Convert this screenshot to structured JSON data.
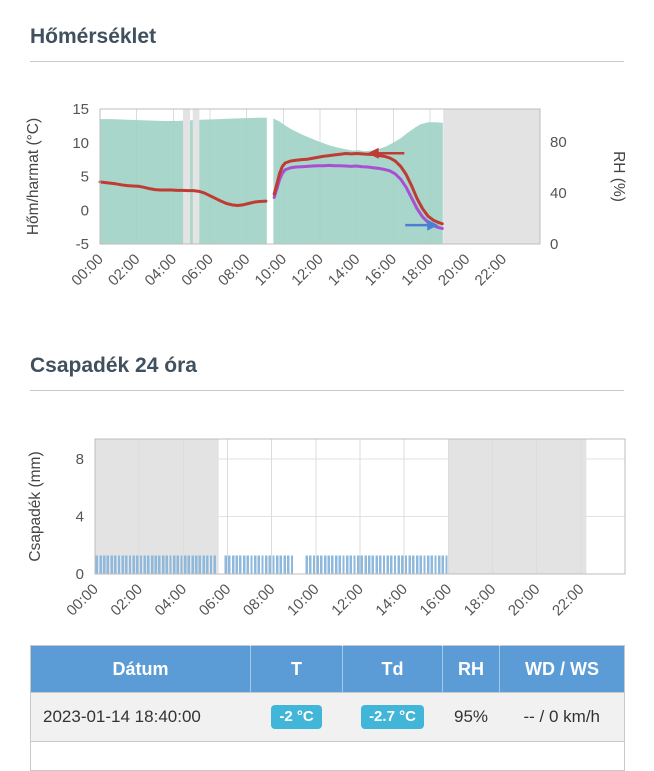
{
  "sections": {
    "temperature": {
      "title": "Hőmérséklet"
    },
    "precipitation": {
      "title": "Csapadék 24 óra"
    }
  },
  "colors": {
    "temperature_line": "#bf3b33",
    "dewpoint_line": "#a94fd1",
    "rh_area": "#a0d2c4",
    "no_data_band": "#e3e3e3",
    "grid": "#dcdcdc",
    "plot_border": "#bdbdbd",
    "table_header_bg": "#5b9cd6",
    "badge_bg": "#41b6d9",
    "bar_fill": "#8db9dd"
  },
  "chart_data": [
    {
      "type": "line",
      "title": "Hőmérséklet",
      "ylabel_left": "Hőm/harmat (°C)",
      "ylabel_right": "RH (%)",
      "ylim_left": [
        -5,
        15
      ],
      "yticks_left": [
        15,
        10,
        5,
        0,
        -5
      ],
      "ylim_right": [
        0,
        105.9
      ],
      "yticks_right": [
        80,
        40,
        0
      ],
      "xlim_hours": [
        0,
        24
      ],
      "xticks": [
        "00:00",
        "02:00",
        "04:00",
        "06:00",
        "08:00",
        "10:00",
        "12:00",
        "14:00",
        "16:00",
        "18:00",
        "20:00",
        "22:00"
      ],
      "grid": true,
      "legend": "none",
      "no_data_bands_hours": [
        [
          4.53,
          4.92
        ],
        [
          5.06,
          5.42
        ],
        [
          18.72,
          24
        ]
      ],
      "gap_band_hours": [
        9.12,
        9.45
      ],
      "series": [
        {
          "key": "rh-area",
          "name": "RH",
          "type": "area",
          "color": "#a0d2c4",
          "axis": "right",
          "segments": [
            [
              [
                0,
                98
              ],
              [
                0.7,
                98
              ],
              [
                1.5,
                97.5
              ],
              [
                2.5,
                97
              ],
              [
                3.5,
                96.5
              ],
              [
                4.2,
                96.5
              ],
              [
                4.8,
                97
              ],
              [
                5.5,
                97.5
              ],
              [
                6.5,
                98
              ],
              [
                7.5,
                98.5
              ],
              [
                8.5,
                99
              ],
              [
                9.1,
                99
              ]
            ],
            [
              [
                9.45,
                98.5
              ],
              [
                9.8,
                96
              ],
              [
                10.1,
                93
              ],
              [
                10.5,
                89.5
              ],
              [
                11,
                86
              ],
              [
                11.5,
                83
              ],
              [
                12,
                80
              ],
              [
                12.5,
                77.5
              ],
              [
                13,
                75.5
              ],
              [
                13.5,
                74
              ],
              [
                13.8,
                73.2
              ],
              [
                14.1,
                73.6
              ],
              [
                14.4,
                72.8
              ],
              [
                14.8,
                73.2
              ],
              [
                15.2,
                74.5
              ],
              [
                15.6,
                76.5
              ],
              [
                16,
                79.5
              ],
              [
                16.4,
                83
              ],
              [
                16.8,
                87.5
              ],
              [
                17.2,
                91.5
              ],
              [
                17.5,
                94
              ],
              [
                17.9,
                95.5
              ],
              [
                18.3,
                95.5
              ],
              [
                18.7,
                95
              ]
            ]
          ]
        },
        {
          "key": "dewpoint-line",
          "name": "Harmatpont",
          "type": "line",
          "color": "#a94fd1",
          "axis": "left",
          "segments": [
            [
              [
                9.5,
                1.9
              ],
              [
                9.65,
                3.2
              ],
              [
                9.8,
                4.6
              ],
              [
                9.95,
                5.5
              ],
              [
                10.1,
                6.0
              ],
              [
                10.4,
                6.3
              ],
              [
                10.7,
                6.4
              ],
              [
                11,
                6.45
              ],
              [
                11.3,
                6.5
              ],
              [
                11.6,
                6.55
              ],
              [
                11.9,
                6.6
              ],
              [
                12.2,
                6.6
              ],
              [
                12.5,
                6.65
              ],
              [
                12.8,
                6.6
              ],
              [
                13.1,
                6.6
              ],
              [
                13.4,
                6.55
              ],
              [
                13.7,
                6.5
              ],
              [
                14,
                6.55
              ],
              [
                14.3,
                6.45
              ],
              [
                14.6,
                6.4
              ],
              [
                14.9,
                6.3
              ],
              [
                15.2,
                6.2
              ],
              [
                15.5,
                6.05
              ],
              [
                15.8,
                5.85
              ],
              [
                16.1,
                5.4
              ],
              [
                16.4,
                4.6
              ],
              [
                16.7,
                3.4
              ],
              [
                17,
                1.8
              ],
              [
                17.3,
                0.2
              ],
              [
                17.6,
                -1.0
              ],
              [
                17.9,
                -1.8
              ],
              [
                18.2,
                -2.3
              ],
              [
                18.45,
                -2.55
              ],
              [
                18.67,
                -2.7
              ]
            ]
          ]
        },
        {
          "key": "temperature-line",
          "name": "Hőmérséklet",
          "type": "line",
          "color": "#bf3b33",
          "axis": "left",
          "segments": [
            [
              [
                0,
                4.2
              ],
              [
                0.3,
                4.1
              ],
              [
                0.6,
                4.0
              ],
              [
                0.9,
                3.9
              ],
              [
                1.2,
                3.75
              ],
              [
                1.5,
                3.65
              ],
              [
                1.8,
                3.6
              ],
              [
                2.1,
                3.55
              ],
              [
                2.4,
                3.4
              ],
              [
                2.7,
                3.2
              ],
              [
                3,
                3.05
              ],
              [
                3.3,
                3.0
              ],
              [
                3.6,
                3.0
              ],
              [
                3.9,
                3.0
              ],
              [
                4.2,
                2.95
              ],
              [
                4.5,
                2.95
              ],
              [
                4.8,
                2.9
              ],
              [
                5.1,
                2.9
              ],
              [
                5.4,
                2.8
              ],
              [
                5.7,
                2.55
              ],
              [
                6,
                2.15
              ],
              [
                6.3,
                1.75
              ],
              [
                6.6,
                1.35
              ],
              [
                6.9,
                1.0
              ],
              [
                7.2,
                0.8
              ],
              [
                7.5,
                0.7
              ],
              [
                7.8,
                0.8
              ],
              [
                8.1,
                1.0
              ],
              [
                8.4,
                1.2
              ],
              [
                8.7,
                1.3
              ],
              [
                9.05,
                1.35
              ]
            ],
            [
              [
                9.5,
                2.4
              ],
              [
                9.65,
                3.9
              ],
              [
                9.8,
                5.5
              ],
              [
                9.95,
                6.5
              ],
              [
                10.1,
                7.0
              ],
              [
                10.4,
                7.3
              ],
              [
                10.7,
                7.4
              ],
              [
                11,
                7.5
              ],
              [
                11.3,
                7.55
              ],
              [
                11.6,
                7.7
              ],
              [
                11.9,
                7.85
              ],
              [
                12.2,
                8.0
              ],
              [
                12.5,
                8.1
              ],
              [
                12.8,
                8.2
              ],
              [
                13.1,
                8.3
              ],
              [
                13.4,
                8.4
              ],
              [
                13.7,
                8.35
              ],
              [
                14,
                8.4
              ],
              [
                14.3,
                8.35
              ],
              [
                14.6,
                8.3
              ],
              [
                14.9,
                8.25
              ],
              [
                15.2,
                8.1
              ],
              [
                15.5,
                8.0
              ],
              [
                15.8,
                7.75
              ],
              [
                16.1,
                7.3
              ],
              [
                16.4,
                6.5
              ],
              [
                16.7,
                5.3
              ],
              [
                17,
                3.6
              ],
              [
                17.3,
                1.7
              ],
              [
                17.6,
                0.2
              ],
              [
                17.9,
                -0.9
              ],
              [
                18.2,
                -1.5
              ],
              [
                18.45,
                -1.8
              ],
              [
                18.67,
                -2.0
              ]
            ]
          ]
        }
      ],
      "annotations": [
        {
          "type": "arrow",
          "dir": "left",
          "color": "#bf3b33",
          "x_hours": [
            14.6,
            16.6
          ],
          "y": 8.45
        },
        {
          "type": "arrow",
          "dir": "right",
          "color": "#4a7fd4",
          "x_hours": [
            16.65,
            18.45
          ],
          "y": -2.2
        }
      ]
    },
    {
      "type": "bar",
      "title": "Csapadék 24 óra",
      "ylabel": "Csapadék (mm)",
      "ylim": [
        0,
        9.4
      ],
      "yticks": [
        8,
        4,
        0
      ],
      "xlim_hours": [
        0,
        24
      ],
      "xticks": [
        "00:00",
        "02:00",
        "04:00",
        "06:00",
        "08:00",
        "10:00",
        "12:00",
        "14:00",
        "16:00",
        "18:00",
        "20:00",
        "22:00"
      ],
      "grid": true,
      "bar_color": "#8db9dd",
      "bar_value_mm": 1.3,
      "bars_hours": {
        "start": 0.085,
        "end": 15.92,
        "step": 0.16667,
        "gaps": [
          [
            5.45,
            5.8
          ],
          [
            9.05,
            9.5
          ]
        ]
      },
      "no_data_bands_hours": [
        [
          0,
          5.6
        ],
        [
          16.0,
          22.25
        ]
      ]
    }
  ],
  "table": {
    "headers": [
      "Dátum",
      "T",
      "Td",
      "RH",
      "WD / WS"
    ],
    "rows": [
      {
        "datum": "2023-01-14 18:40:00",
        "t": "-2 °C",
        "td": "-2.7 °C",
        "rh": "95%",
        "wdws": "-- / 0 km/h"
      }
    ]
  }
}
